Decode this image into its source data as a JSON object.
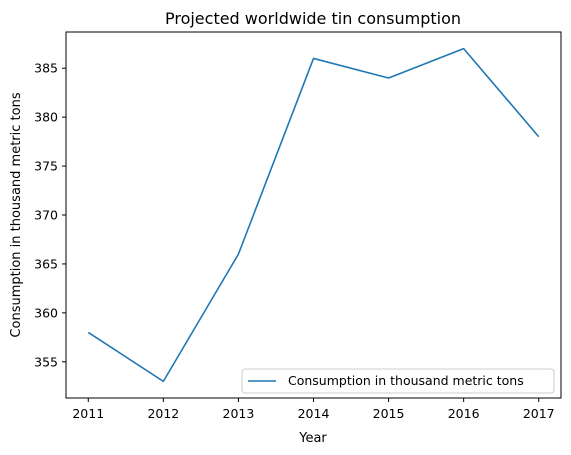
{
  "chart_data": {
    "type": "line",
    "title": "Projected worldwide tin consumption",
    "xlabel": "Year",
    "ylabel": "Consumption in thousand metric tons",
    "x": [
      "2011",
      "2012",
      "2013",
      "2014",
      "2015",
      "2016",
      "2017"
    ],
    "series": [
      {
        "name": "Consumption in thousand metric tons",
        "values": [
          358,
          353,
          366,
          386,
          384,
          387,
          378
        ],
        "color": "#1f77b4"
      }
    ],
    "yticks": [
      355,
      360,
      365,
      370,
      375,
      380,
      385
    ],
    "ylim": [
      351.3,
      388.7
    ],
    "grid": false,
    "legend_position": "lower-right"
  }
}
